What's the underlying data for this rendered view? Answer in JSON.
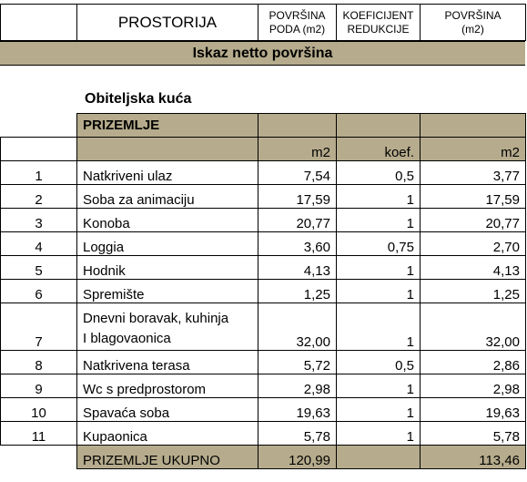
{
  "header": {
    "prostorija": "PROSTORIJA",
    "povrsina_poda_line1": "POVRŠINA",
    "povrsina_poda_line2": "PODA (m2)",
    "koeficijent_line1": "KOEFICIJENT",
    "koeficijent_line2": "REDUKCIJE",
    "povrsina_line1": "POVRŠINA",
    "povrsina_line2": "(m2)"
  },
  "band_title": "Iskaz netto površina",
  "section_title": "Obiteljska kuća",
  "group_label": "PRIZEMLJE",
  "units": {
    "area": "m2",
    "coef": "koef.",
    "reduced": "m2"
  },
  "rows": [
    {
      "idx": "1",
      "name": "Natkriveni ulaz",
      "area": "7,54",
      "coef": "0,5",
      "reduced": "3,77"
    },
    {
      "idx": "2",
      "name": "Soba za animaciju",
      "area": "17,59",
      "coef": "1",
      "reduced": "17,59"
    },
    {
      "idx": "3",
      "name": "Konoba",
      "area": "20,77",
      "coef": "1",
      "reduced": "20,77"
    },
    {
      "idx": "4",
      "name": "Loggia",
      "area": "3,60",
      "coef": "0,75",
      "reduced": "2,70"
    },
    {
      "idx": "5",
      "name": "Hodnik",
      "area": "4,13",
      "coef": "1",
      "reduced": "4,13"
    },
    {
      "idx": "6",
      "name": "Spremište",
      "area": "1,25",
      "coef": "1",
      "reduced": "1,25"
    },
    {
      "idx": "7",
      "name_line1": "Dnevni boravak, kuhinja",
      "name_line2": "I blagovaonica",
      "area": "32,00",
      "coef": "1",
      "reduced": "32,00"
    },
    {
      "idx": "8",
      "name": "Natkrivena terasa",
      "area": "5,72",
      "coef": "0,5",
      "reduced": "2,86"
    },
    {
      "idx": "9",
      "name": "Wc s predprostorom",
      "area": "2,98",
      "coef": "1",
      "reduced": "2,98"
    },
    {
      "idx": "10",
      "name": "Spavaća soba",
      "area": "19,63",
      "coef": "1",
      "reduced": "19,63"
    },
    {
      "idx": "11",
      "name": "Kupaonica",
      "area": "5,78",
      "coef": "1",
      "reduced": "5,78"
    }
  ],
  "total": {
    "label": "PRIZEMLJE UKUPNO",
    "area": "120,99",
    "reduced": "113,46"
  },
  "colors": {
    "band": "#b6ac8d",
    "border": "#000000"
  }
}
